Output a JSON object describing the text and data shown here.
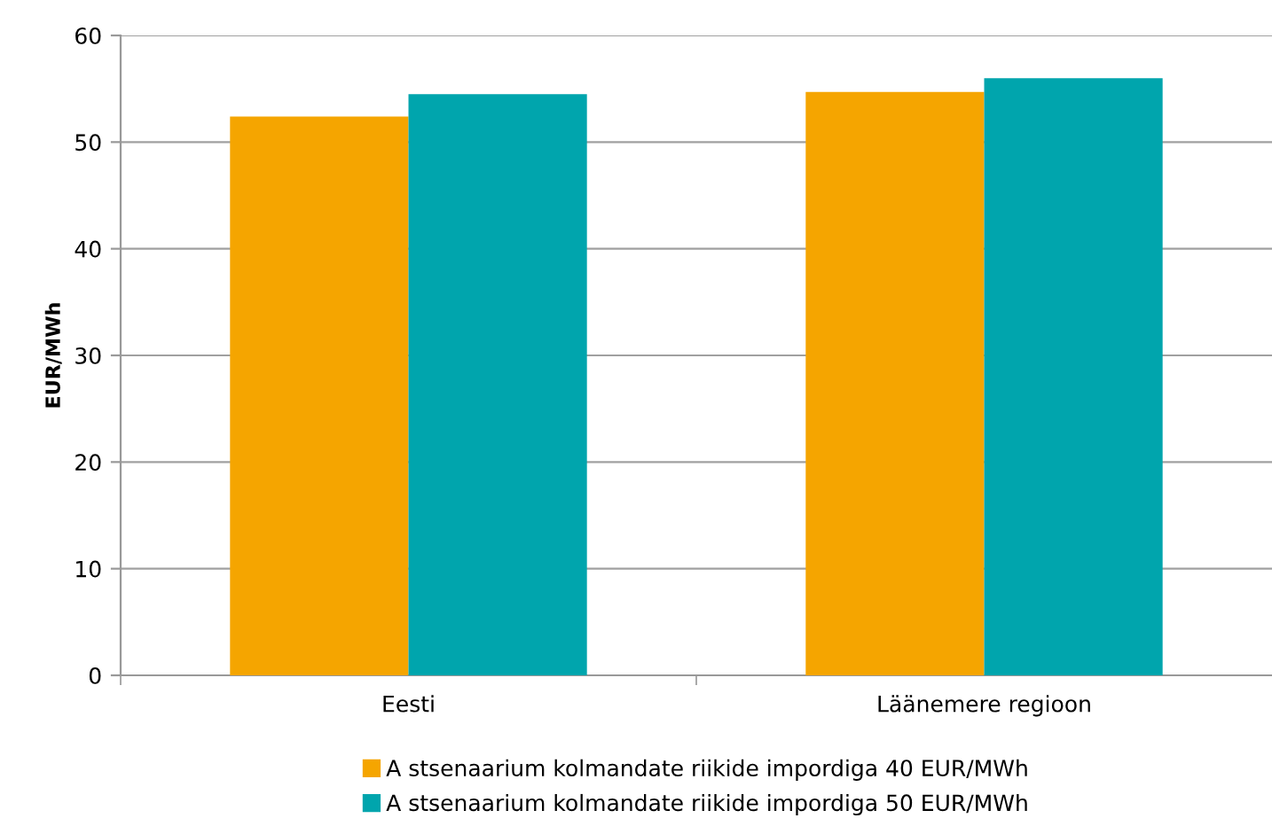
{
  "chart_data": {
    "type": "bar",
    "ylabel": "EUR/MWh",
    "categories": [
      "Eesti",
      "Läänemere regioon"
    ],
    "series": [
      {
        "name": "A stsenaarium kolmandate riikide impordiga 40 EUR/MWh",
        "color": "#f5a500",
        "values": [
          52.4,
          54.7
        ]
      },
      {
        "name": "A stsenaarium kolmandate riikide impordiga 50 EUR/MWh",
        "color": "#00a5ad",
        "values": [
          54.5,
          56.0
        ]
      }
    ],
    "ylim": [
      0,
      60
    ],
    "yticks": [
      0,
      10,
      20,
      30,
      40,
      50,
      60
    ],
    "grid": "y",
    "legend": "bottom"
  }
}
